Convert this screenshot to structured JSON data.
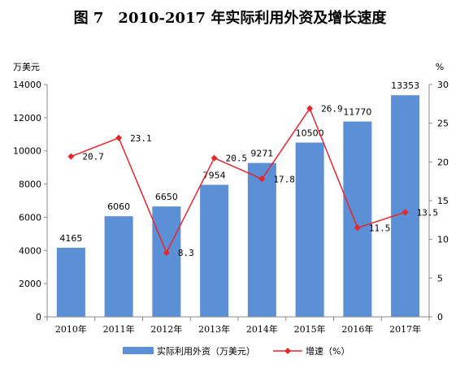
{
  "chart_data": {
    "type": "bar+line",
    "title": "图 7　2010-2017 年实际利用外资及增长速度",
    "categories": [
      "2010年",
      "2011年",
      "2012年",
      "2013年",
      "2014年",
      "2015年",
      "2016年",
      "2017年"
    ],
    "series": [
      {
        "name": "实际利用外资（万美元）",
        "type": "bar",
        "axis": "left",
        "color": "#5b8fd6",
        "values": [
          4165,
          6060,
          6650,
          7954,
          9271,
          10500,
          11770,
          13353
        ],
        "labels": [
          "4165",
          "6060",
          "6650",
          "7954",
          "9271",
          "10500",
          "11770",
          "13353"
        ]
      },
      {
        "name": "增速（%）",
        "type": "line",
        "axis": "right",
        "color": "#e8252a",
        "values": [
          20.7,
          23.1,
          8.3,
          20.5,
          17.8,
          26.9,
          11.5,
          13.5
        ],
        "labels": [
          "20.7",
          "23.1",
          "8.3",
          "20.5",
          "17.8",
          "26.9",
          "11.5",
          "13.5"
        ]
      }
    ],
    "y_left": {
      "label": "万美元",
      "min": 0,
      "max": 14000,
      "ticks": [
        "0",
        "2000",
        "4000",
        "6000",
        "8000",
        "10000",
        "12000",
        "14000"
      ]
    },
    "y_right": {
      "label": "%",
      "min": 0,
      "max": 30,
      "ticks": [
        "0",
        "5",
        "10",
        "15",
        "20",
        "25",
        "30"
      ]
    },
    "grid": false,
    "legend_position": "bottom"
  }
}
